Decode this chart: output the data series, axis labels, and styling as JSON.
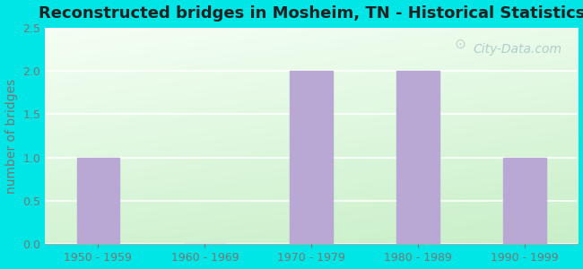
{
  "title": "Reconstructed bridges in Mosheim, TN - Historical Statistics",
  "categories": [
    "1950 - 1959",
    "1960 - 1969",
    "1970 - 1979",
    "1980 - 1989",
    "1990 - 1999"
  ],
  "values": [
    1,
    0,
    2,
    2,
    1
  ],
  "bar_color": "#b9a8d4",
  "ylabel": "number of bridges",
  "ylim": [
    0,
    2.5
  ],
  "yticks": [
    0,
    0.5,
    1,
    1.5,
    2,
    2.5
  ],
  "background_color": "#00e5e5",
  "title_fontsize": 13,
  "ylabel_fontsize": 10,
  "tick_fontsize": 9,
  "tick_color": "#777777",
  "watermark": "City-Data.com",
  "grid_color": "#d0e8d0",
  "bar_width": 0.4
}
